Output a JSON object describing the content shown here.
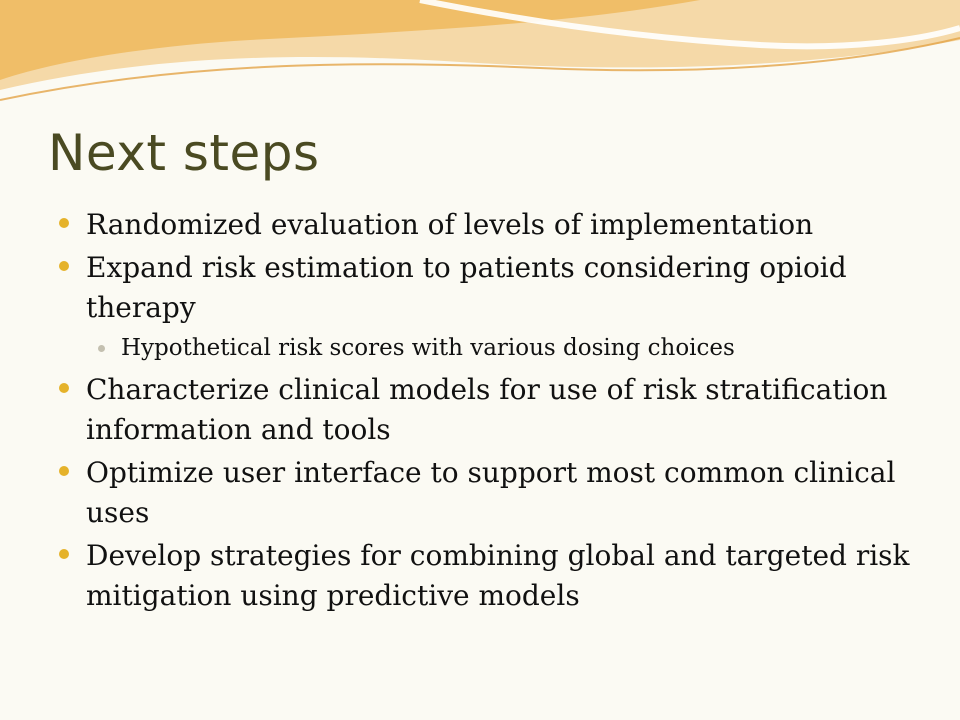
{
  "slide": {
    "title": "Next steps",
    "bullets": [
      {
        "level": 1,
        "text": "Randomized evaluation of levels of implementation"
      },
      {
        "level": 1,
        "text": "Expand risk estimation to patients considering opioid therapy"
      },
      {
        "level": 2,
        "text": "Hypothetical risk scores with various dosing choices"
      },
      {
        "level": 1,
        "text": "Characterize clinical models for use of risk stratification information and tools"
      },
      {
        "level": 1,
        "text": "Optimize user interface to support most common clinical uses"
      },
      {
        "level": 1,
        "text": "Develop strategies for combining global and targeted risk mitigation using predictive models"
      }
    ]
  },
  "colors": {
    "background": "#fbfaf3",
    "title": "#4a4a22",
    "bullet_primary": "#e5b22a",
    "bullet_secondary": "#c4c0b0",
    "wave_gold": "#efb95d",
    "wave_peach": "#f5d9a8"
  }
}
